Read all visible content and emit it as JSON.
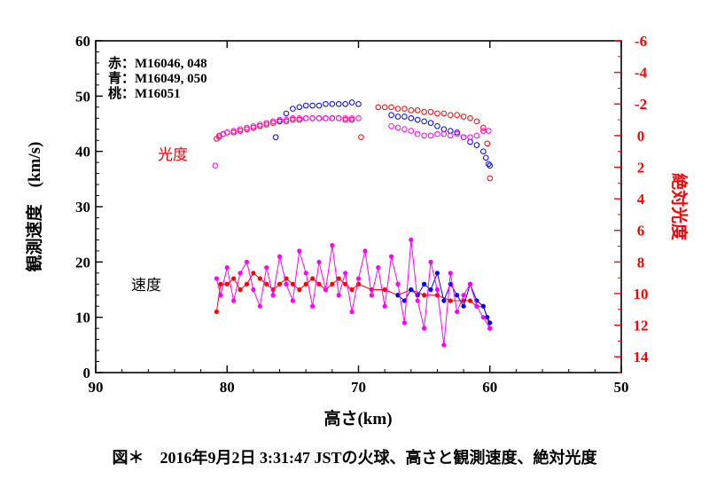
{
  "caption": "図＊　2016年9月2日 3:31:47 JSTの火球、高さと観測速度、絶対光度",
  "legend": [
    "赤：M16046, 048",
    "青：M16049, 050",
    "桃：M16051"
  ],
  "annotations": {
    "brightness": "光度",
    "speed": "速度"
  },
  "colors": {
    "red": "#ff0000",
    "blue": "#0000ff",
    "pink": "#ff00ff",
    "right_axis": "#ff0000"
  },
  "chart_data": {
    "type": "scatter",
    "xlabel": "高さ(km)",
    "ylabel": "観測速度　(km/s)",
    "y2label": "絶対光度",
    "xlim": [
      90,
      50
    ],
    "ylim": [
      0,
      60
    ],
    "y2lim": [
      15,
      -6
    ],
    "x_ticks": [
      "90",
      "80",
      "70",
      "60",
      "50"
    ],
    "y_ticks": [
      "0",
      "10",
      "20",
      "30",
      "40",
      "50",
      "60"
    ],
    "y2_ticks": [
      "14",
      "12",
      "10",
      "8",
      "6",
      "4",
      "2",
      "0",
      "-2",
      "-4",
      "-6"
    ],
    "series": [
      {
        "name": "赤：M16046, 048",
        "color": "#ff0000",
        "brightness": {
          "x": [
            80.8,
            80.6,
            80.3,
            80.0,
            79.5,
            79.0,
            78.5,
            78.0,
            77.5,
            77.0,
            76.5,
            76.0,
            75.5,
            75.0,
            74.5,
            74.0,
            73.5,
            73.0,
            72.5,
            72.0,
            71.5,
            71.0,
            70.5,
            69.8,
            68.5,
            68.0,
            67.5,
            67.0,
            66.5,
            66.0,
            65.5,
            65.0,
            64.5,
            64.0,
            63.5,
            63.0,
            62.5,
            62.0,
            61.5,
            61.0,
            60.5,
            60.2,
            60.0
          ],
          "y": [
            0.2,
            0.0,
            -0.1,
            -0.2,
            -0.2,
            -0.3,
            -0.4,
            -0.5,
            -0.6,
            -0.7,
            -0.8,
            -0.9,
            -0.9,
            -1.0,
            -1.0,
            -1.1,
            -1.1,
            -1.1,
            -1.1,
            -1.1,
            -1.1,
            -1.0,
            -1.0,
            0.1,
            -1.8,
            -1.8,
            -1.8,
            -1.7,
            -1.7,
            -1.6,
            -1.6,
            -1.5,
            -1.5,
            -1.4,
            -1.4,
            -1.3,
            -1.3,
            -1.2,
            -1.1,
            -0.9,
            -0.5,
            0.5,
            2.7
          ]
        },
        "speed": {
          "x": [
            80.8,
            80.5,
            80.0,
            79.5,
            79.0,
            78.5,
            78.0,
            77.5,
            77.0,
            76.5,
            76.0,
            75.5,
            75.0,
            74.5,
            74.0,
            73.5,
            73.0,
            72.5,
            72.0,
            71.5,
            71.0,
            70.5,
            70.0,
            69.0,
            68.0,
            67.0,
            66.0,
            65.0,
            64.0,
            63.0,
            62.0,
            61.5,
            61.0,
            60.5,
            60.2,
            60.0
          ],
          "y": [
            11,
            16,
            16,
            17,
            15,
            16,
            18,
            17,
            16,
            15,
            16,
            17,
            16,
            15,
            16,
            17,
            16,
            15,
            16,
            17,
            16,
            15,
            16,
            15,
            15,
            14,
            15,
            14,
            14,
            13,
            13,
            13,
            12,
            12,
            10,
            8
          ]
        }
      },
      {
        "name": "青：M16049, 050",
        "color": "#0000ff",
        "brightness": {
          "x": [
            76.3,
            76.0,
            75.5,
            75.0,
            74.5,
            74.0,
            73.5,
            73.0,
            72.5,
            72.0,
            71.5,
            71.0,
            70.5,
            70.0,
            67.5,
            67.0,
            66.5,
            66.0,
            65.5,
            65.0,
            64.5,
            64.0,
            63.5,
            63.0,
            62.5,
            62.0,
            61.5,
            61.0,
            60.5,
            60.3,
            60.1,
            60.0
          ],
          "y": [
            0.1,
            -0.9,
            -1.4,
            -1.7,
            -1.8,
            -1.9,
            -1.9,
            -1.9,
            -2.0,
            -2.0,
            -2.0,
            -2.0,
            -2.1,
            -2.0,
            -1.3,
            -1.2,
            -1.2,
            -1.1,
            -1.0,
            -0.9,
            -0.8,
            -0.6,
            -0.4,
            -0.3,
            -0.2,
            0.1,
            0.4,
            0.6,
            1.0,
            1.4,
            1.8,
            1.9
          ]
        },
        "speed": {
          "x": [
            67.0,
            66.5,
            66.0,
            65.5,
            65.0,
            64.5,
            64.0,
            63.5,
            63.0,
            62.5,
            62.0,
            61.5,
            61.0,
            60.5,
            60.2,
            60.0
          ],
          "y": [
            14,
            13,
            15,
            14,
            16,
            15,
            18,
            13,
            16,
            14,
            12,
            16,
            13,
            12,
            10,
            9
          ]
        }
      },
      {
        "name": "桃：M16051",
        "color": "#ff00ff",
        "brightness": {
          "x": [
            80.9,
            80.6,
            80.3,
            80.0,
            79.5,
            79.0,
            78.5,
            78.0,
            77.5,
            77.0,
            76.5,
            76.0,
            75.5,
            75.0,
            74.5,
            74.0,
            73.5,
            73.0,
            72.5,
            72.0,
            71.5,
            71.0,
            70.5,
            70.0,
            67.5,
            67.0,
            66.5,
            66.0,
            65.5,
            65.0,
            64.5,
            64.0,
            63.5,
            63.0,
            62.5,
            62.0,
            61.5,
            61.0,
            60.5,
            60.1
          ],
          "y": [
            1.9,
            0.1,
            -0.1,
            -0.2,
            -0.3,
            -0.4,
            -0.5,
            -0.6,
            -0.7,
            -0.8,
            -0.9,
            -1.0,
            -1.0,
            -1.1,
            -1.1,
            -1.1,
            -1.1,
            -1.1,
            -1.1,
            -1.1,
            -1.1,
            -1.1,
            -1.1,
            -1.1,
            -0.6,
            -0.5,
            -0.4,
            -0.3,
            -0.1,
            0.0,
            0.0,
            -0.1,
            -0.1,
            0.0,
            -0.1,
            0.1,
            0.1,
            0.0,
            -0.3,
            -0.3
          ]
        },
        "speed": {
          "x": [
            80.8,
            80.5,
            80.0,
            79.5,
            79.0,
            78.5,
            78.0,
            77.5,
            77.0,
            76.5,
            76.0,
            75.5,
            75.0,
            74.5,
            74.0,
            73.5,
            73.0,
            72.5,
            72.0,
            71.5,
            71.0,
            70.5,
            70.0,
            69.5,
            69.0,
            68.5,
            68.0,
            67.5,
            67.0,
            66.5,
            66.0,
            65.5,
            65.0,
            64.5,
            64.0,
            63.5,
            63.0,
            62.5,
            62.0,
            61.5,
            61.0,
            60.5,
            60.0
          ],
          "y": [
            17,
            14,
            19,
            13,
            18,
            20,
            15,
            12,
            19,
            14,
            21,
            16,
            13,
            22,
            18,
            12,
            20,
            15,
            23,
            14,
            18,
            11,
            17,
            22,
            14,
            19,
            12,
            21,
            16,
            9,
            24,
            13,
            8,
            20,
            15,
            5,
            18,
            11,
            14,
            16,
            12,
            10,
            8
          ]
        }
      }
    ]
  }
}
